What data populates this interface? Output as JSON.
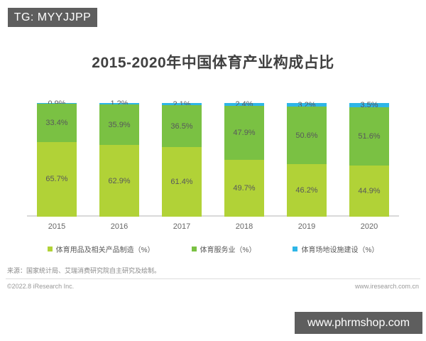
{
  "watermarks": {
    "top_left": "TG: MYYJJPP",
    "bottom_right": "www.phrmshop.com"
  },
  "chart_data": {
    "type": "bar",
    "stacked": true,
    "percent_stacked": true,
    "title": "2015-2020年中国体育产业构成占比",
    "categories": [
      "2015",
      "2016",
      "2017",
      "2018",
      "2019",
      "2020"
    ],
    "series": [
      {
        "name": "体育用品及相关产品制造（%）",
        "color": "#b1d237",
        "values": [
          65.7,
          62.9,
          61.4,
          49.7,
          46.2,
          44.9
        ]
      },
      {
        "name": "体育服务业（%）",
        "color": "#7ac143",
        "values": [
          33.4,
          35.9,
          36.5,
          47.9,
          50.6,
          51.6
        ]
      },
      {
        "name": "体育场地设施建设（%）",
        "color": "#2eb6e7",
        "values": [
          0.9,
          1.2,
          2.1,
          2.4,
          3.2,
          3.5
        ]
      }
    ],
    "ylim": [
      0,
      100
    ],
    "grid": false,
    "legend_position": "bottom",
    "axis_line_color": "#d9d9d9",
    "label_color": "#58595b"
  },
  "footer": {
    "source_note": "来源：国家统计局、艾瑞消费研究院自主研究及绘制。",
    "copyright": "©2022.8 iResearch Inc.",
    "website": "www.iresearch.com.cn"
  }
}
